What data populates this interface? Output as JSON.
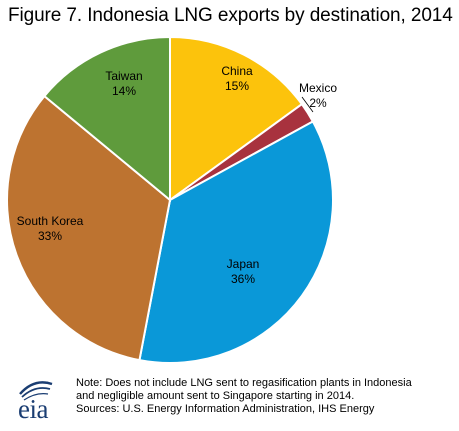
{
  "chart_data": {
    "type": "pie",
    "title": "Figure 7. Indonesia LNG exports by destination, 2014",
    "slices": [
      {
        "label": "China",
        "value": 15,
        "value_label": "15%",
        "color": "#fcc30c"
      },
      {
        "label": "Mexico",
        "value": 2,
        "value_label": "2%",
        "color": "#a8323e"
      },
      {
        "label": "Japan",
        "value": 36,
        "value_label": "36%",
        "color": "#0a98d8"
      },
      {
        "label": "South Korea",
        "value": 33,
        "value_label": "33%",
        "color": "#bd7330"
      },
      {
        "label": "Taiwan",
        "value": 14,
        "value_label": "14%",
        "color": "#5f9b3c"
      }
    ]
  },
  "notes": {
    "line1": "Note: Does not include LNG sent to regasification plants in Indonesia",
    "line2": "and negligible amount sent to Singapore starting in 2014.",
    "line3": "Sources: U.S. Energy Information Administration, IHS Energy"
  },
  "logo": {
    "text": "eia",
    "color": "#1a3d72"
  }
}
